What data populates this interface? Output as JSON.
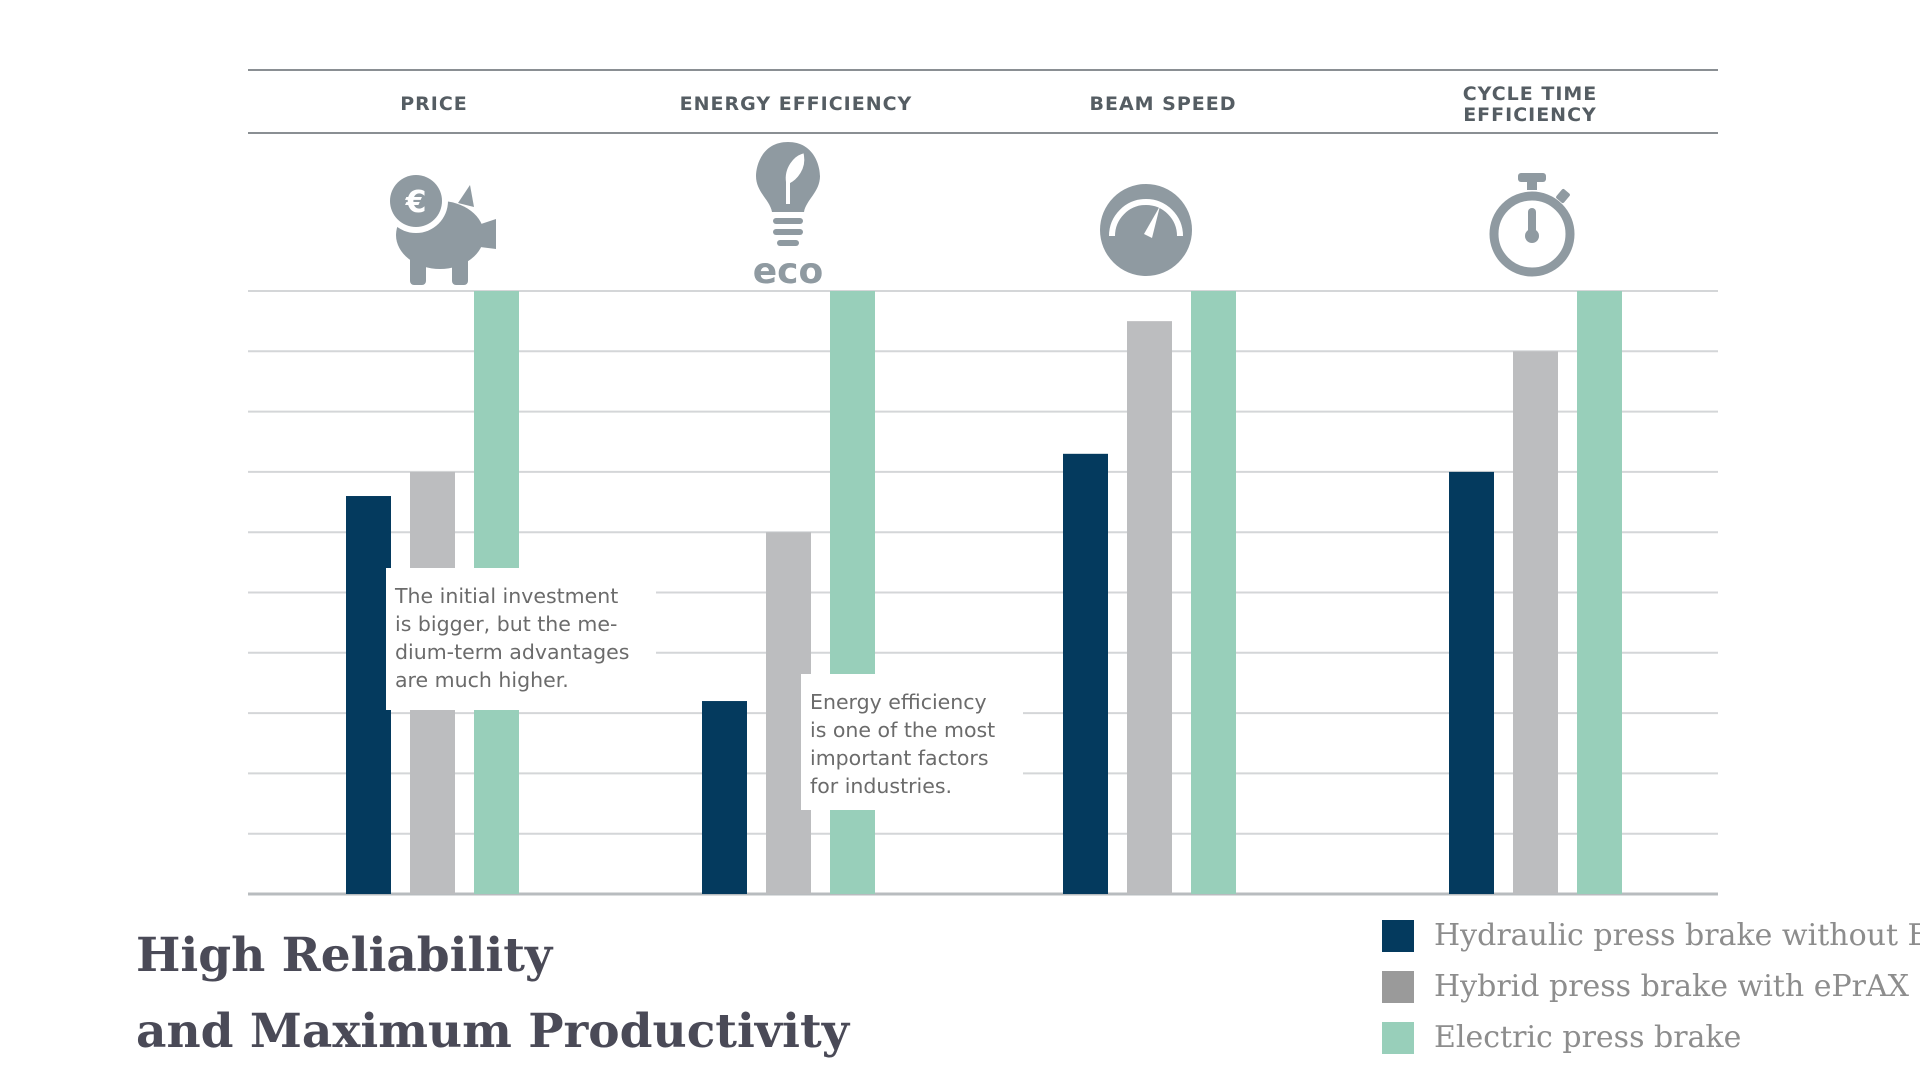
{
  "chart_data": {
    "type": "bar",
    "title": "",
    "xlabel": "",
    "ylabel": "",
    "ylim": [
      0,
      10
    ],
    "grid": true,
    "categories": [
      "PRICE",
      "ENERGY EFFICIENCY",
      "BEAM SPEED",
      "CYCLE TIME EFFICIENCY"
    ],
    "series": [
      {
        "name": "Hydraulic press brake without ECO",
        "color": "#043a5e",
        "values": [
          6.6,
          3.2,
          7.3,
          7.0
        ]
      },
      {
        "name": "Hybrid press brake with ePrAX",
        "color": "#bcbdbf",
        "values": [
          7.0,
          6.0,
          9.5,
          9.0
        ]
      },
      {
        "name": "Electric press brake",
        "color": "#98cfba",
        "values": [
          10,
          10,
          10,
          10
        ]
      }
    ],
    "legend_position": "bottom-right",
    "annotations": [
      {
        "category": "PRICE",
        "lines": [
          "The initial investment",
          "is bigger, but the me-",
          "dium-term advantages",
          "are much higher."
        ]
      },
      {
        "category": "ENERGY EFFICIENCY",
        "lines": [
          "Energy efficiency",
          "is one of the most",
          "important factors",
          "for industries."
        ]
      }
    ]
  },
  "icons": [
    "piggy-bank-euro-icon",
    "eco-lightbulb-icon",
    "speedometer-icon",
    "stopwatch-icon"
  ],
  "eco_label": "eco",
  "euro_symbol": "€",
  "headline": {
    "line1": "High Reliability",
    "line2": "and Maximum Productivity"
  }
}
